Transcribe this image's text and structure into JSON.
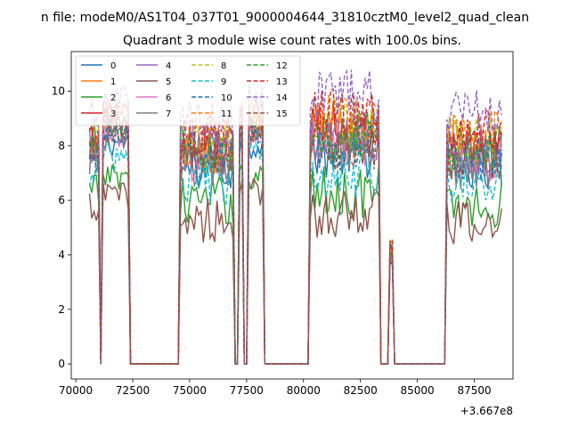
{
  "chart_data": {
    "type": "line",
    "suptitle": "n file: modeM0/AS1T04_037T01_9000004644_31810cztM0_level2_quad_clean",
    "title": "Quadrant 3 module wise count rates with 100.0s bins.",
    "xlabel": "",
    "ylabel": "",
    "offset_label": "+3.667e8",
    "xlim": [
      69800,
      89200
    ],
    "ylim": [
      -0.55,
      11.45
    ],
    "xticks": [
      70000,
      72500,
      75000,
      77500,
      80000,
      82500,
      85000,
      87500
    ],
    "yticks": [
      0,
      2,
      4,
      6,
      8,
      10
    ],
    "legend_location": "upper-left",
    "segments_observed": [
      [
        70600,
        71050
      ],
      [
        71150,
        72300
      ],
      [
        74500,
        77000
      ],
      [
        77150,
        77350
      ],
      [
        77550,
        78200
      ],
      [
        80200,
        83350
      ],
      [
        83750,
        83950
      ],
      [
        86250,
        88700
      ]
    ],
    "zero_gaps": [
      [
        71050,
        71150
      ],
      [
        72400,
        74500
      ],
      [
        77000,
        77150
      ],
      [
        77350,
        77550
      ],
      [
        78250,
        80200
      ],
      [
        83400,
        83750
      ],
      [
        84000,
        86250
      ]
    ],
    "series": [
      {
        "name": "0",
        "color": "#1f77b4",
        "dash": false,
        "level_a": 7.2,
        "level_b": 7.6
      },
      {
        "name": "1",
        "color": "#ff7f0e",
        "dash": false,
        "level_a": 7.6,
        "level_b": 8.3
      },
      {
        "name": "2",
        "color": "#2ca02c",
        "dash": false,
        "level_a": 6.0,
        "level_b": 6.1
      },
      {
        "name": "3",
        "color": "#d62728",
        "dash": false,
        "level_a": 7.9,
        "level_b": 8.4
      },
      {
        "name": "4",
        "color": "#9467bd",
        "dash": false,
        "level_a": 7.8,
        "level_b": 8.1
      },
      {
        "name": "5",
        "color": "#8c564b",
        "dash": false,
        "level_a": 5.3,
        "level_b": 5.4
      },
      {
        "name": "6",
        "color": "#e377c2",
        "dash": false,
        "level_a": 7.5,
        "level_b": 7.8
      },
      {
        "name": "7",
        "color": "#7f7f7f",
        "dash": false,
        "level_a": 7.4,
        "level_b": 7.6
      },
      {
        "name": "8",
        "color": "#bcbd22",
        "dash": true,
        "level_a": 8.1,
        "level_b": 8.6
      },
      {
        "name": "9",
        "color": "#17becf",
        "dash": true,
        "level_a": 6.7,
        "level_b": 6.9
      },
      {
        "name": "10",
        "color": "#1f77b4",
        "dash": true,
        "level_a": 7.6,
        "level_b": 7.9
      },
      {
        "name": "11",
        "color": "#ff7f0e",
        "dash": true,
        "level_a": 8.2,
        "level_b": 8.8
      },
      {
        "name": "12",
        "color": "#2ca02c",
        "dash": true,
        "level_a": 7.9,
        "level_b": 8.1
      },
      {
        "name": "13",
        "color": "#d62728",
        "dash": true,
        "level_a": 8.3,
        "level_b": 8.9
      },
      {
        "name": "14",
        "color": "#9467bd",
        "dash": true,
        "level_a": 8.8,
        "level_b": 9.6
      },
      {
        "name": "15",
        "color": "#8c564b",
        "dash": true,
        "level_a": 7.7,
        "level_b": 7.9
      }
    ]
  }
}
